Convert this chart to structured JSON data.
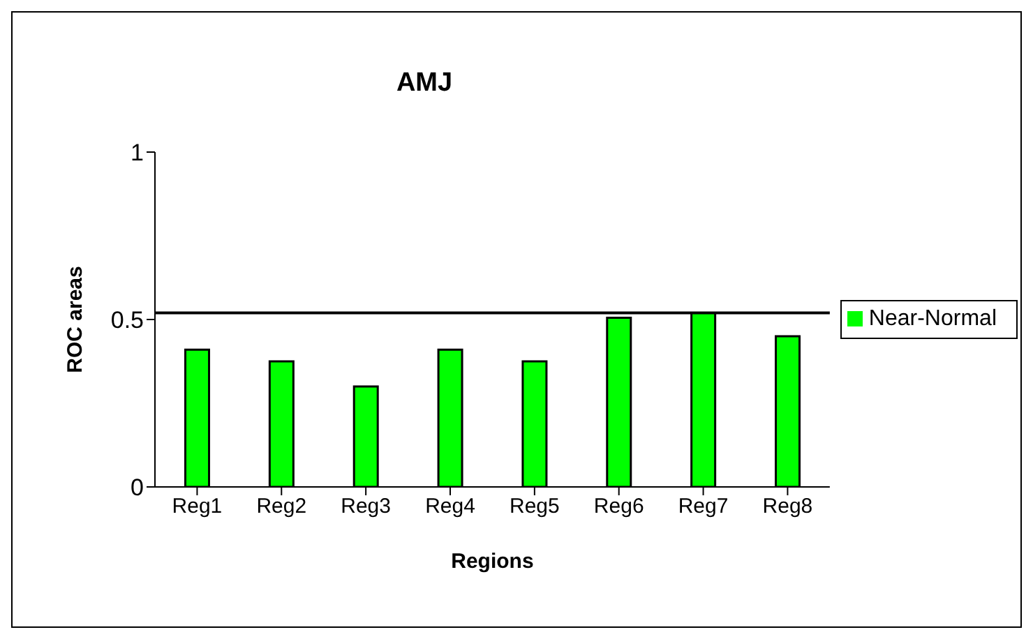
{
  "chart_data": {
    "type": "bar",
    "title": "AMJ",
    "xlabel": "Regions",
    "ylabel": "ROC areas",
    "categories": [
      "Reg1",
      "Reg2",
      "Reg3",
      "Reg4",
      "Reg5",
      "Reg6",
      "Reg7",
      "Reg8"
    ],
    "series": [
      {
        "name": "Near-Normal",
        "color": "#00ff00",
        "values": [
          0.41,
          0.375,
          0.3,
          0.41,
          0.375,
          0.505,
          0.52,
          0.45
        ]
      }
    ],
    "ylim": [
      0,
      1
    ],
    "yticks": [
      0,
      0.5,
      1
    ],
    "grid": false,
    "legend": "right",
    "ref_lines": [
      {
        "axis": "y",
        "value": 0.52,
        "color": "#000000"
      }
    ]
  }
}
